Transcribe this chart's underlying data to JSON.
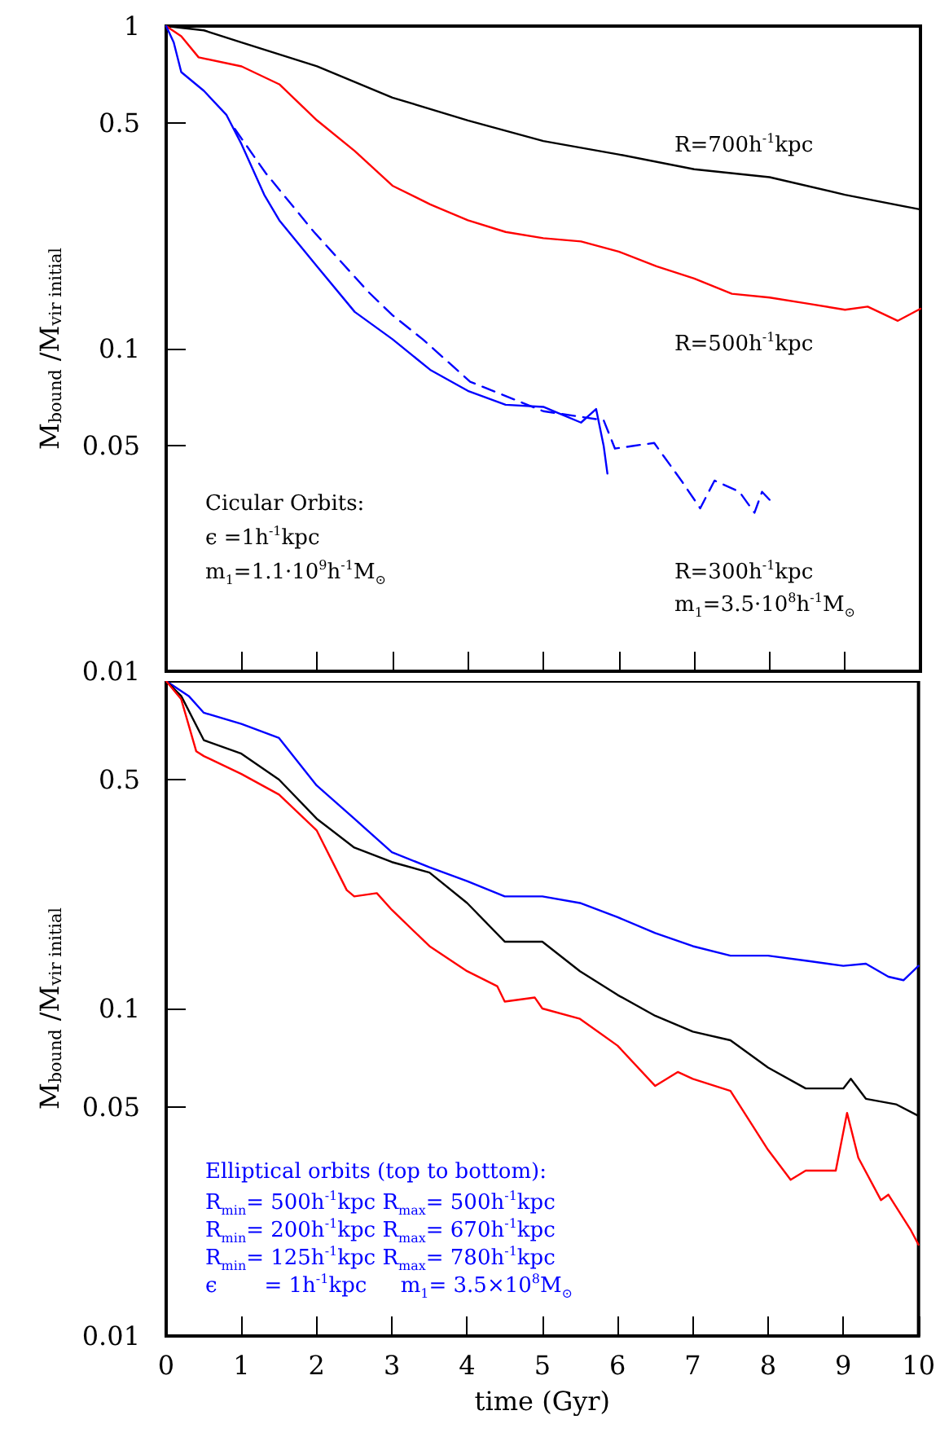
{
  "chart_data": [
    {
      "type": "line",
      "ylabel": "M$_{bound}$ /M$_{vir initial}$",
      "xlim": [
        0,
        10
      ],
      "xticks": [
        0,
        1,
        2,
        3,
        4,
        5,
        6,
        7,
        8,
        9,
        10
      ],
      "ylim": [
        0.01,
        1
      ],
      "yticks": [
        1,
        0.5,
        0.1,
        0.05,
        0.01
      ],
      "log": "y",
      "tick_labels": "y",
      "grid": false,
      "marker": "none",
      "series": [
        {
          "color": "#000000",
          "x": [
            0,
            0.5,
            1,
            2,
            3,
            4,
            5,
            6,
            7,
            8,
            9,
            10
          ],
          "values": [
            1,
            0.97,
            0.89,
            0.75,
            0.6,
            0.51,
            0.44,
            0.4,
            0.36,
            0.34,
            0.3,
            0.27
          ]
        },
        {
          "color": "#ff0000",
          "x": [
            0,
            0.2,
            0.43,
            1,
            1.5,
            2,
            2.5,
            3,
            3.5,
            4,
            4.5,
            5,
            5.5,
            6,
            6.5,
            7,
            7.5,
            8,
            8.5,
            9,
            9.3,
            9.7,
            10
          ],
          "values": [
            1,
            0.93,
            0.8,
            0.75,
            0.66,
            0.51,
            0.41,
            0.32,
            0.28,
            0.25,
            0.23,
            0.22,
            0.215,
            0.2,
            0.18,
            0.165,
            0.148,
            0.144,
            0.138,
            0.132,
            0.135,
            0.122,
            0.133
          ]
        },
        {
          "color": "#0000ff",
          "x": [
            0,
            0.1,
            0.2,
            0.5,
            0.8,
            1,
            1.3,
            1.5,
            2,
            2.5,
            3,
            3.5,
            4,
            4.5,
            5,
            5.5,
            5.7,
            5.8,
            5.85
          ],
          "values": [
            1,
            0.89,
            0.72,
            0.63,
            0.53,
            0.43,
            0.3,
            0.25,
            0.18,
            0.13,
            0.107,
            0.086,
            0.074,
            0.067,
            0.066,
            0.059,
            0.065,
            0.05,
            0.041
          ]
        },
        {
          "color": "#0000ff",
          "line_style": "dashed",
          "x": [
            0.91,
            1.32,
            1.96,
            2.68,
            3.0,
            3.4,
            4.03,
            5.0,
            5.8,
            5.95,
            6.2,
            6.47,
            6.83,
            7.08,
            7.27,
            7.6,
            7.8,
            7.9,
            8.0
          ],
          "values": [
            0.48,
            0.35,
            0.23,
            0.15,
            0.127,
            0.107,
            0.079,
            0.064,
            0.06,
            0.049,
            0.05,
            0.051,
            0.039,
            0.032,
            0.039,
            0.036,
            0.031,
            0.036,
            0.034
          ]
        }
      ],
      "annotations": [
        "R=700h$^{-1}$kpc",
        "R=500h$^{-1}$kpc",
        "R=300h$^{-1}$kpc",
        "m$_{1}$=3.5·10$^{8}$h$^{-1}$M$_{⊙}$",
        "Cicular Orbits:",
        "ϵ =1h$^{-1}$kpc",
        "m$_{1}$=1.1·10$^{9}$h$^{-1}$M$_{⊙}$"
      ]
    },
    {
      "type": "line",
      "ylabel": "M$_{bound}$ /M$_{vir initial}$",
      "xlabel": "time (Gyr)",
      "xlim": [
        0,
        10
      ],
      "xticks": [
        0,
        1,
        2,
        3,
        4,
        5,
        6,
        7,
        8,
        9,
        10
      ],
      "ylim": [
        0.01,
        1
      ],
      "yticks": [
        0.5,
        0.1,
        0.05,
        0.01
      ],
      "log": "y",
      "grid": false,
      "marker": "none",
      "series": [
        {
          "color": "#0000ff",
          "x": [
            0,
            0.3,
            0.5,
            1,
            1.5,
            2,
            2.5,
            3,
            3.5,
            4,
            4.5,
            5,
            5.5,
            6,
            6.5,
            7,
            7.5,
            8,
            8.5,
            9,
            9.3,
            9.6,
            9.8,
            10
          ],
          "values": [
            1,
            0.9,
            0.8,
            0.74,
            0.67,
            0.48,
            0.38,
            0.3,
            0.27,
            0.245,
            0.22,
            0.22,
            0.21,
            0.19,
            0.17,
            0.155,
            0.145,
            0.145,
            0.14,
            0.135,
            0.137,
            0.125,
            0.122,
            0.135
          ]
        },
        {
          "color": "#000000",
          "x": [
            0,
            0.2,
            0.5,
            1,
            1.5,
            2,
            2.5,
            3,
            3.5,
            4,
            4.5,
            5,
            5.5,
            6,
            6.5,
            7,
            7.5,
            8,
            8.5,
            9,
            9.1,
            9.3,
            9.7,
            10
          ],
          "values": [
            1,
            0.9,
            0.66,
            0.6,
            0.5,
            0.38,
            0.31,
            0.28,
            0.26,
            0.21,
            0.16,
            0.16,
            0.13,
            0.11,
            0.095,
            0.085,
            0.08,
            0.066,
            0.057,
            0.057,
            0.061,
            0.053,
            0.051,
            0.047
          ]
        },
        {
          "color": "#ff0000",
          "x": [
            0,
            0.2,
            0.4,
            0.5,
            1,
            1.5,
            2,
            2.4,
            2.5,
            2.8,
            3,
            3.5,
            4,
            4.4,
            4.5,
            4.9,
            5,
            5.5,
            6,
            6.5,
            6.8,
            7,
            7.5,
            8,
            8.3,
            8.5,
            8.9,
            9.05,
            9.2,
            9.5,
            9.6,
            9.9,
            10
          ],
          "values": [
            1,
            0.88,
            0.61,
            0.59,
            0.52,
            0.45,
            0.35,
            0.23,
            0.22,
            0.225,
            0.2,
            0.155,
            0.13,
            0.117,
            0.105,
            0.108,
            0.1,
            0.093,
            0.077,
            0.058,
            0.064,
            0.061,
            0.056,
            0.037,
            0.03,
            0.032,
            0.032,
            0.048,
            0.035,
            0.026,
            0.027,
            0.021,
            0.019
          ]
        }
      ],
      "annotations": [
        "Elliptical orbits (top to bottom):",
        "R$_{min}$= 500h$^{-1}$kpc R$_{max}$= 500h$^{-1}$kpc",
        "R$_{min}$= 200h$^{-1}$kpc R$_{max}$= 670h$^{-1}$kpc",
        "R$_{min}$= 125h$^{-1}$kpc R$_{max}$= 780h$^{-1}$kpc",
        "ϵ       = 1h$^{-1}$kpc     m$_{1}$= 3.5×10$^{8}$M$_{⊙}$"
      ]
    }
  ]
}
